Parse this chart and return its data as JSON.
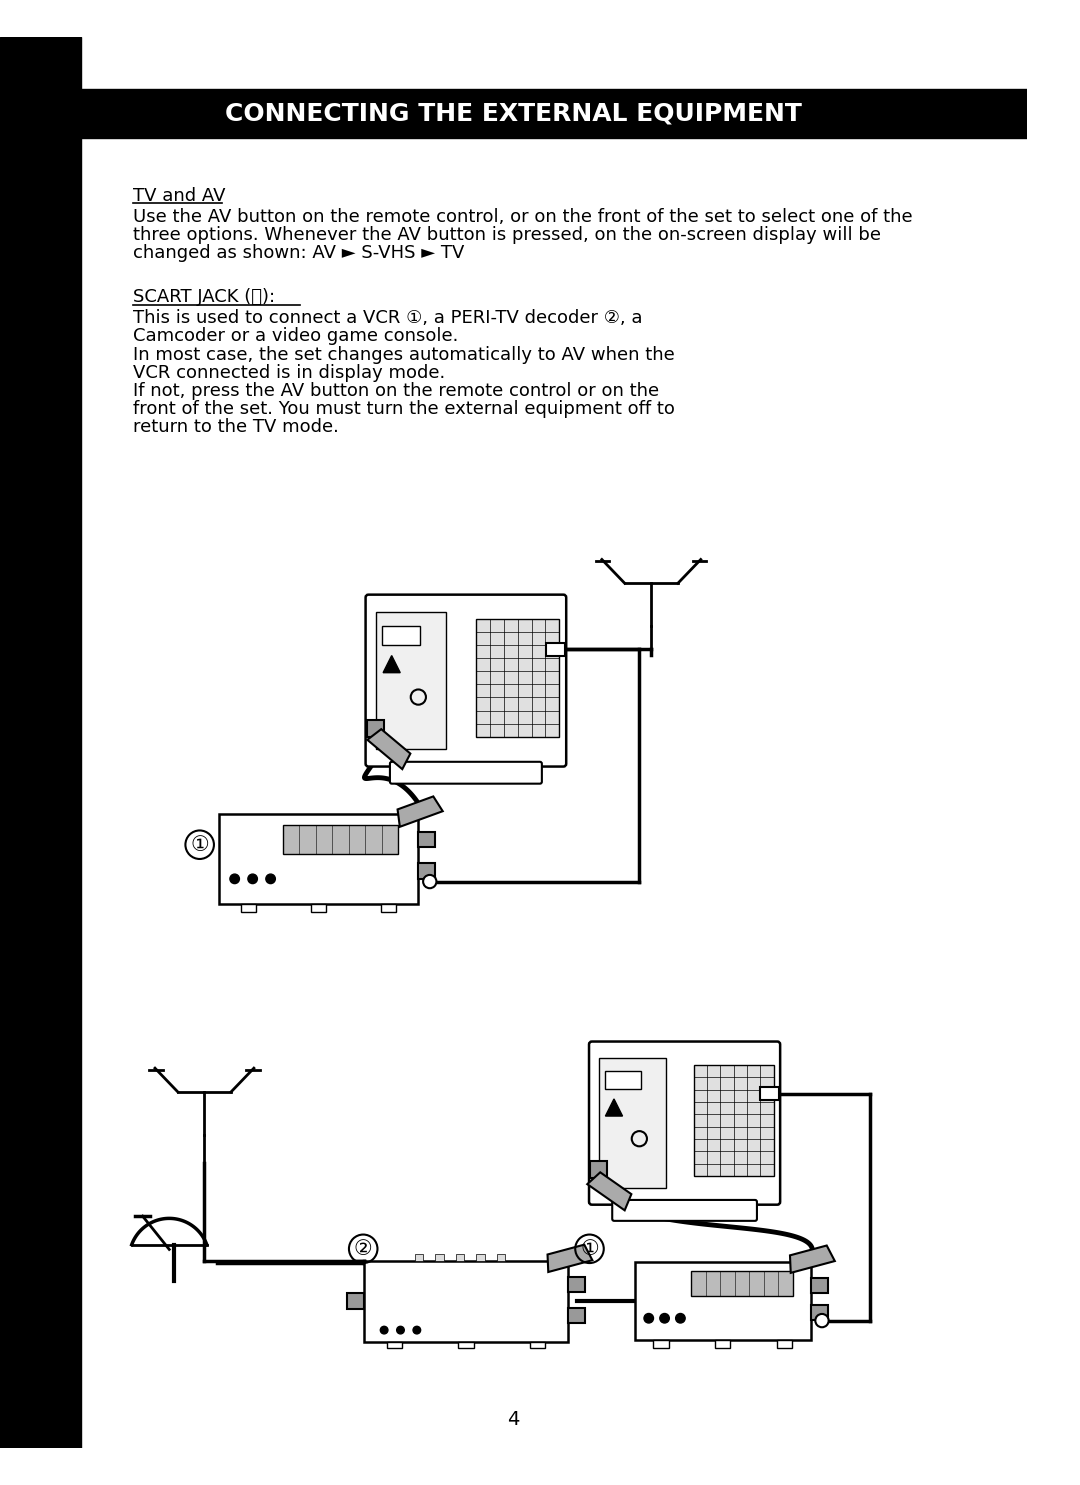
{
  "title": "CONNECTING THE EXTERNAL EQUIPMENT",
  "title_bg": "#000000",
  "title_color": "#ffffff",
  "page_bg": "#ffffff",
  "page_number": "4",
  "left_bar_color": "#000000",
  "section1_heading": "TV and AV",
  "section1_text_lines": [
    "Use the AV button on the remote control, or on the front of the set to select one of the",
    "three options. Whenever the AV button is pressed, on the on-screen display will be",
    "changed as shown: AV ► S-VHS ► TV"
  ],
  "section2_heading": "SCART JACK (⦿):",
  "section2_text_lines": [
    "This is used to connect a VCR ①, a PERI-TV decoder ②, a",
    "Camcoder or a video game console.",
    "In most case, the set changes automatically to AV when the",
    "VCR connected is in display mode.",
    "If not, press the AV button on the remote control or on the",
    "front of the set. You must turn the external equipment off to",
    "return to the TV mode."
  ],
  "label1": "①",
  "label2": "②",
  "font_size_body": 13,
  "font_size_heading": 13,
  "font_size_title": 18
}
